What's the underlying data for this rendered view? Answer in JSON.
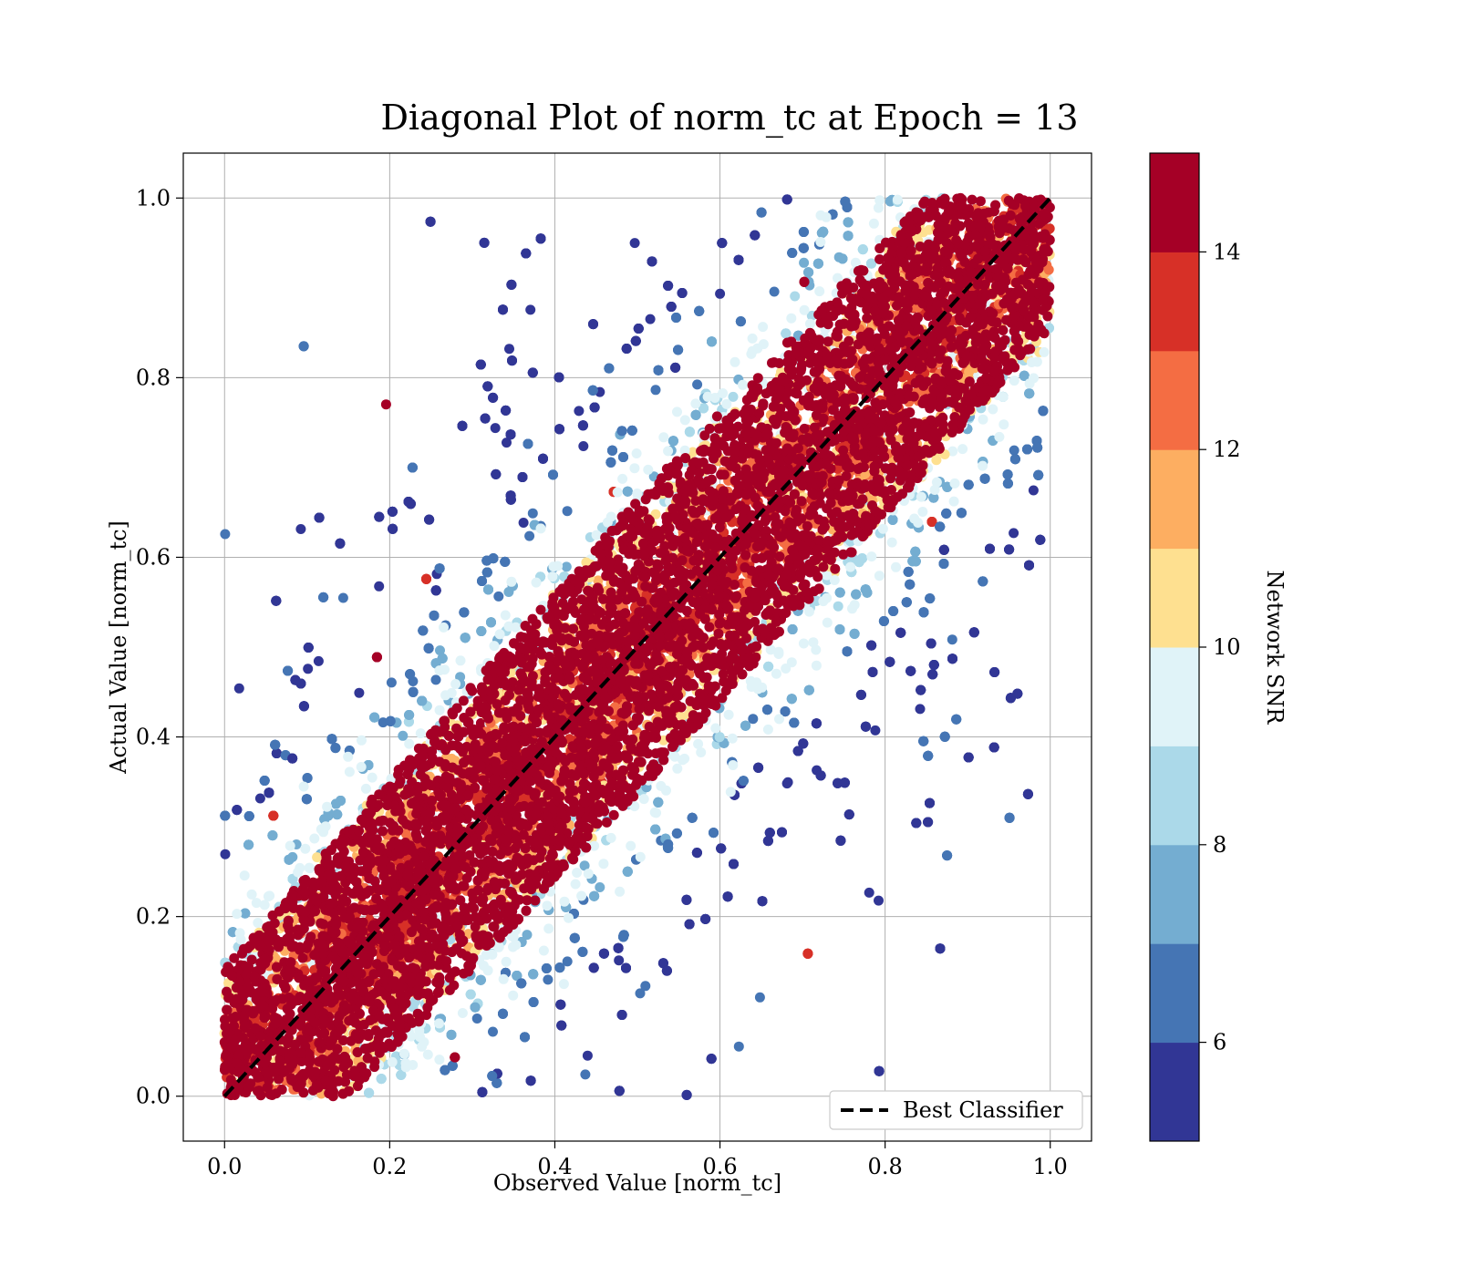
{
  "chart_data": {
    "type": "scatter",
    "title": "Diagonal Plot of norm_tc at Epoch = 13",
    "xlabel": "Observed Value [norm_tc]",
    "ylabel": "Actual Value [norm_tc]",
    "xlim": [
      -0.05,
      1.05
    ],
    "ylim": [
      -0.05,
      1.05
    ],
    "x_ticks": [
      "0.0",
      "0.2",
      "0.4",
      "0.6",
      "0.8",
      "1.0"
    ],
    "y_ticks": [
      "0.0",
      "0.2",
      "0.4",
      "0.6",
      "0.8",
      "1.0"
    ],
    "grid": true,
    "reference_line": {
      "x": [
        0,
        1
      ],
      "y": [
        0,
        1
      ],
      "style": "dashed",
      "color": "#000000"
    },
    "legend": {
      "position": "lower-right",
      "entries": [
        "Best Classifier"
      ]
    },
    "colorbar": {
      "label": "Network SNR",
      "range": [
        5,
        15
      ],
      "ticks": [
        "6",
        "8",
        "10",
        "12",
        "14"
      ],
      "tick_values": [
        6,
        8,
        10,
        12,
        14
      ],
      "colors": [
        "#313695",
        "#4575b4",
        "#74add1",
        "#abd9e9",
        "#e0f3f8",
        "#fee090",
        "#fdae61",
        "#f46d43",
        "#d73027",
        "#a50026"
      ]
    },
    "points_note": "dense scatter: high-SNR points (dark red) hug the diagonal y = x, lower-SNR points (blues) spread across the full square"
  }
}
